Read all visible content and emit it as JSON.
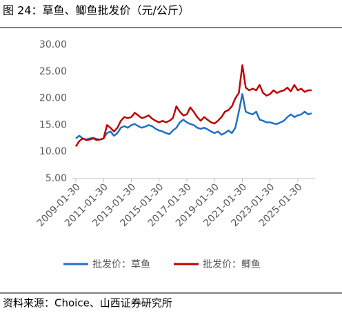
{
  "chart_data": {
    "type": "line",
    "title": "图 24：草鱼、鲫鱼批发价（元/公斤）",
    "source": "资料来源：Choice、山西证券研究所",
    "x": [
      "2009-01-30",
      "2009-04-30",
      "2009-07-30",
      "2009-10-30",
      "2010-01-30",
      "2010-04-30",
      "2010-07-30",
      "2010-10-30",
      "2011-01-30",
      "2011-04-30",
      "2011-07-30",
      "2011-10-30",
      "2012-01-30",
      "2012-04-30",
      "2012-07-30",
      "2012-10-30",
      "2013-01-30",
      "2013-04-30",
      "2013-07-30",
      "2013-10-30",
      "2014-01-30",
      "2014-04-30",
      "2014-07-30",
      "2014-10-30",
      "2015-01-30",
      "2015-04-30",
      "2015-07-30",
      "2015-10-30",
      "2016-01-30",
      "2016-04-30",
      "2016-07-30",
      "2016-10-30",
      "2017-01-30",
      "2017-04-30",
      "2017-07-30",
      "2017-10-30",
      "2018-01-30",
      "2018-04-30",
      "2018-07-30",
      "2018-10-30",
      "2019-01-30",
      "2019-04-30",
      "2019-07-30",
      "2019-10-30",
      "2020-01-30",
      "2020-04-30",
      "2020-07-30",
      "2020-10-30",
      "2021-01-30",
      "2021-04-30",
      "2021-07-30",
      "2021-10-30",
      "2022-01-30",
      "2022-04-30",
      "2022-07-30",
      "2022-10-30",
      "2023-01-30",
      "2023-04-30",
      "2023-07-30",
      "2023-10-30",
      "2024-01-30",
      "2024-04-30",
      "2024-07-30",
      "2024-10-30",
      "2025-01-30",
      "2025-04-30",
      "2025-07-30",
      "2025-10-30",
      "2026-01-30"
    ],
    "series": [
      {
        "name": "批发价：草鱼",
        "color": "#1f6fc5",
        "values": [
          12.5,
          13,
          12.5,
          12.3,
          12.5,
          12.6,
          12.4,
          12.3,
          12.5,
          13.5,
          13.8,
          13,
          13.5,
          14.5,
          14.8,
          14.5,
          15,
          15.2,
          14.8,
          14.5,
          14.7,
          15,
          14.8,
          14.3,
          14,
          13.8,
          13.5,
          13.3,
          14,
          14.5,
          15.5,
          16,
          15.5,
          15.2,
          15,
          14.5,
          14.3,
          14.5,
          14.2,
          13.8,
          13.5,
          13.8,
          13.2,
          13.5,
          14,
          13.5,
          14.5,
          17.5,
          20.8,
          17.5,
          17.2,
          17,
          17.5,
          16,
          15.8,
          15.5,
          15.5,
          15.3,
          15.2,
          15.5,
          15.8,
          16.5,
          17,
          16.5,
          16.8,
          17,
          17.5,
          17,
          17.2
        ]
      },
      {
        "name": "批发价：鲫鱼",
        "color": "#c00000",
        "values": [
          11,
          12,
          12.5,
          12.2,
          12.3,
          12.5,
          12.2,
          12.3,
          12.5,
          15,
          14.5,
          13.8,
          14.5,
          15.8,
          16.5,
          16.3,
          16.5,
          17.3,
          16.8,
          16.3,
          16.5,
          16.8,
          16.2,
          15.8,
          15.5,
          15.8,
          15.5,
          15.8,
          16.3,
          18.5,
          17.5,
          16.8,
          17,
          18.3,
          17.5,
          16.5,
          15.8,
          16.5,
          16,
          15.5,
          15.3,
          15.8,
          16.5,
          17.5,
          17.8,
          18.5,
          20,
          21,
          26.2,
          22,
          21.5,
          21.8,
          21.5,
          22.5,
          21,
          20.5,
          20.8,
          21.5,
          21,
          21.3,
          21.5,
          22,
          21.3,
          22.5,
          21.5,
          21.8,
          21.2,
          21.5,
          21.5
        ]
      }
    ],
    "xlim": [
      "2009-01-30",
      "2026-04-30"
    ],
    "xticks": [
      "2009-01-30",
      "2011-01-30",
      "2013-01-30",
      "2015-01-30",
      "2017-01-30",
      "2019-01-30",
      "2021-01-30",
      "2023-01-30",
      "2025-01-30"
    ],
    "ylim": [
      5,
      30
    ],
    "yticks": [
      {
        "value": 5,
        "label": "5.00"
      },
      {
        "value": 10,
        "label": "10.00"
      },
      {
        "value": 15,
        "label": "15.00"
      },
      {
        "value": 20,
        "label": "20.00"
      },
      {
        "value": 25,
        "label": "25.00"
      },
      {
        "value": 30,
        "label": "30.00"
      }
    ],
    "grid": false,
    "legend": "bottom"
  }
}
